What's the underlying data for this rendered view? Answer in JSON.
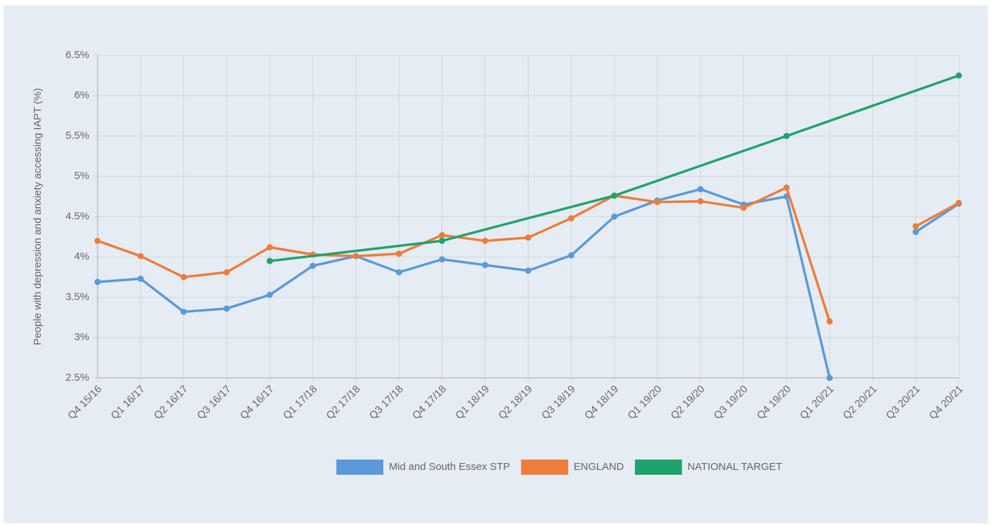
{
  "chart_data": {
    "type": "line",
    "y_label": "People with depression and anxiety accessing IAPT (%)",
    "categories": [
      "Q4 15/16",
      "Q1 16/17",
      "Q2 16/17",
      "Q3 16/17",
      "Q4 16/17",
      "Q1 17/18",
      "Q2 17/18",
      "Q3 17/18",
      "Q4 17/18",
      "Q1 18/19",
      "Q2 18/19",
      "Q3 18/19",
      "Q4 18/19",
      "Q1 19/20",
      "Q2 19/20",
      "Q3 19/20",
      "Q4 19/20",
      "Q1 20/21",
      "Q2 20/21",
      "Q3 20/21",
      "Q4 20/21"
    ],
    "series": [
      {
        "name": "Mid and South Essex STP",
        "color": "#5a9ad9",
        "values": [
          3.69,
          3.73,
          3.32,
          3.36,
          3.53,
          3.89,
          4.01,
          3.81,
          3.97,
          3.9,
          3.83,
          4.02,
          4.5,
          4.7,
          4.84,
          4.65,
          4.75,
          2.5,
          null,
          4.31,
          4.66
        ]
      },
      {
        "name": "ENGLAND",
        "color": "#ed7d3b",
        "values": [
          4.2,
          4.01,
          3.75,
          3.81,
          4.12,
          4.03,
          4.01,
          4.04,
          4.27,
          4.2,
          4.24,
          4.48,
          4.76,
          4.68,
          4.69,
          4.61,
          4.86,
          3.2,
          null,
          4.38,
          4.67
        ]
      },
      {
        "name": "NATIONAL TARGET",
        "color": "#1fa36d",
        "span_gaps": true,
        "values": [
          null,
          null,
          null,
          null,
          3.95,
          null,
          null,
          null,
          4.2,
          null,
          null,
          null,
          4.76,
          null,
          null,
          null,
          5.5,
          null,
          null,
          null,
          6.25
        ]
      }
    ],
    "ylim": [
      2.5,
      6.5
    ],
    "yticks": [
      {
        "value": 2.5,
        "label": "2.5%"
      },
      {
        "value": 3,
        "label": "3%"
      },
      {
        "value": 3.5,
        "label": "3.5%"
      },
      {
        "value": 4,
        "label": "4%"
      },
      {
        "value": 4.5,
        "label": "4.5%"
      },
      {
        "value": 5,
        "label": "5%"
      },
      {
        "value": 5.5,
        "label": "5.5%"
      },
      {
        "value": 6,
        "label": "6%"
      },
      {
        "value": 6.5,
        "label": "6.5%"
      }
    ],
    "grid": true,
    "legend": "bottom"
  }
}
